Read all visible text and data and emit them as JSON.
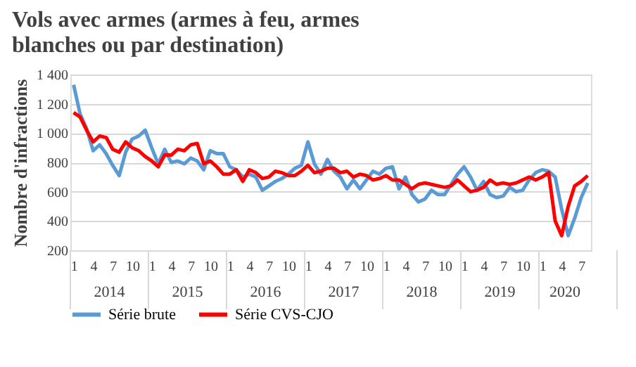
{
  "chart_data": {
    "type": "line",
    "title": "Vols avec armes (armes à feu, armes blanches ou par destination)",
    "ylabel": "Nombre d'infractions",
    "categories": [
      "1",
      null,
      null,
      "4",
      null,
      null,
      "7",
      null,
      null,
      "10",
      null,
      null,
      "1",
      null,
      null,
      "4",
      null,
      null,
      "7",
      null,
      null,
      "10",
      null,
      null,
      "1",
      null,
      null,
      "4",
      null,
      null,
      "7",
      null,
      null,
      "10",
      null,
      null,
      "1",
      null,
      null,
      "4",
      null,
      null,
      "7",
      null,
      null,
      "10",
      null,
      null,
      "1",
      null,
      null,
      "4",
      null,
      null,
      "7",
      null,
      null,
      "10",
      null,
      null,
      "1",
      null,
      null,
      "4",
      null,
      null,
      "7",
      null,
      null,
      "10",
      null,
      null,
      "1",
      null,
      null,
      "4",
      null,
      null,
      "7",
      null
    ],
    "annotations": [
      "2014",
      "2015",
      "2016",
      "2017",
      "2018",
      "2019",
      "2020"
    ],
    "series": [
      {
        "name": "Série brute",
        "color": "#5b9bd5",
        "values": [
          1330,
          1130,
          1030,
          880,
          920,
          860,
          780,
          710,
          870,
          960,
          980,
          1020,
          900,
          790,
          890,
          800,
          810,
          790,
          830,
          810,
          750,
          880,
          860,
          860,
          770,
          750,
          700,
          720,
          700,
          610,
          640,
          670,
          690,
          720,
          760,
          780,
          940,
          790,
          720,
          820,
          740,
          700,
          620,
          680,
          620,
          680,
          740,
          720,
          760,
          770,
          620,
          700,
          580,
          530,
          550,
          610,
          580,
          580,
          650,
          720,
          770,
          700,
          610,
          670,
          580,
          560,
          570,
          630,
          600,
          610,
          680,
          730,
          750,
          740,
          700,
          480,
          300,
          420,
          560,
          660
        ]
      },
      {
        "name": "Série CVS-CJO",
        "color": "#ff0000",
        "values": [
          1140,
          1110,
          1020,
          940,
          980,
          970,
          890,
          870,
          940,
          900,
          880,
          840,
          810,
          770,
          850,
          850,
          890,
          880,
          920,
          930,
          790,
          810,
          770,
          720,
          720,
          750,
          670,
          750,
          730,
          690,
          700,
          740,
          730,
          710,
          710,
          740,
          780,
          730,
          740,
          760,
          760,
          730,
          740,
          700,
          720,
          710,
          680,
          690,
          710,
          680,
          680,
          650,
          620,
          650,
          660,
          650,
          640,
          630,
          640,
          680,
          640,
          600,
          610,
          630,
          680,
          650,
          660,
          650,
          660,
          680,
          700,
          680,
          700,
          730,
          400,
          300,
          500,
          640,
          670,
          710
        ]
      }
    ],
    "ylim": [
      200,
      1400
    ],
    "yticks": [
      200,
      400,
      600,
      800,
      {
        "value": 1000,
        "label": "1 000"
      },
      {
        "value": 1200,
        "label": "1 200"
      },
      {
        "value": 1400,
        "label": "1 400"
      }
    ],
    "grid": "y",
    "legend": "bottom",
    "marker": "none",
    "line_style": "solid"
  }
}
